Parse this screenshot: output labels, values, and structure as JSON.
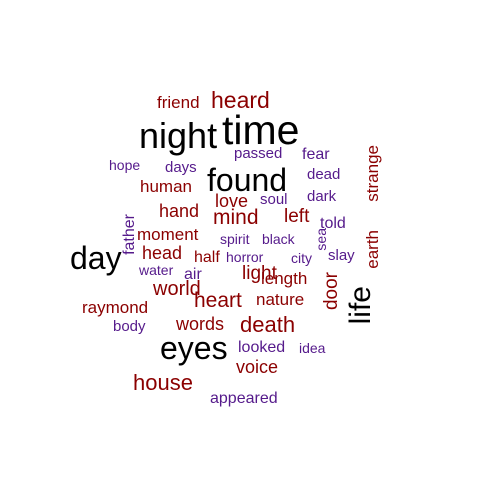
{
  "colors": {
    "top": "#000000",
    "mid": "#8b0000",
    "low": "#551a8b"
  },
  "words": [
    {
      "text": "time",
      "color": "top"
    },
    {
      "text": "night",
      "color": "top"
    },
    {
      "text": "found",
      "color": "top"
    },
    {
      "text": "eyes",
      "color": "top"
    },
    {
      "text": "day",
      "color": "top"
    },
    {
      "text": "life",
      "color": "top"
    },
    {
      "text": "heard",
      "color": "mid"
    },
    {
      "text": "friend",
      "color": "mid"
    },
    {
      "text": "mind",
      "color": "mid"
    },
    {
      "text": "heart",
      "color": "mid"
    },
    {
      "text": "death",
      "color": "mid"
    },
    {
      "text": "house",
      "color": "mid"
    },
    {
      "text": "human",
      "color": "mid"
    },
    {
      "text": "hand",
      "color": "mid"
    },
    {
      "text": "love",
      "color": "mid"
    },
    {
      "text": "left",
      "color": "mid"
    },
    {
      "text": "moment",
      "color": "mid"
    },
    {
      "text": "head",
      "color": "mid"
    },
    {
      "text": "light",
      "color": "mid"
    },
    {
      "text": "world",
      "color": "mid"
    },
    {
      "text": "nature",
      "color": "mid"
    },
    {
      "text": "words",
      "color": "mid"
    },
    {
      "text": "voice",
      "color": "mid"
    },
    {
      "text": "raymond",
      "color": "mid"
    },
    {
      "text": "half",
      "color": "mid"
    },
    {
      "text": "length",
      "color": "mid"
    },
    {
      "text": "door",
      "color": "mid"
    },
    {
      "text": "earth",
      "color": "mid"
    },
    {
      "text": "strange",
      "color": "mid"
    },
    {
      "text": "fear",
      "color": "low"
    },
    {
      "text": "passed",
      "color": "low"
    },
    {
      "text": "days",
      "color": "low"
    },
    {
      "text": "hope",
      "color": "low"
    },
    {
      "text": "dead",
      "color": "low"
    },
    {
      "text": "dark",
      "color": "low"
    },
    {
      "text": "soul",
      "color": "low"
    },
    {
      "text": "told",
      "color": "low"
    },
    {
      "text": "father",
      "color": "low"
    },
    {
      "text": "spirit",
      "color": "low"
    },
    {
      "text": "black",
      "color": "low"
    },
    {
      "text": "sea",
      "color": "low"
    },
    {
      "text": "water",
      "color": "low"
    },
    {
      "text": "air",
      "color": "low"
    },
    {
      "text": "horror",
      "color": "low"
    },
    {
      "text": "city",
      "color": "low"
    },
    {
      "text": "slay",
      "color": "low"
    },
    {
      "text": "body",
      "color": "low"
    },
    {
      "text": "looked",
      "color": "low"
    },
    {
      "text": "idea",
      "color": "low"
    },
    {
      "text": "appeared",
      "color": "low"
    }
  ]
}
